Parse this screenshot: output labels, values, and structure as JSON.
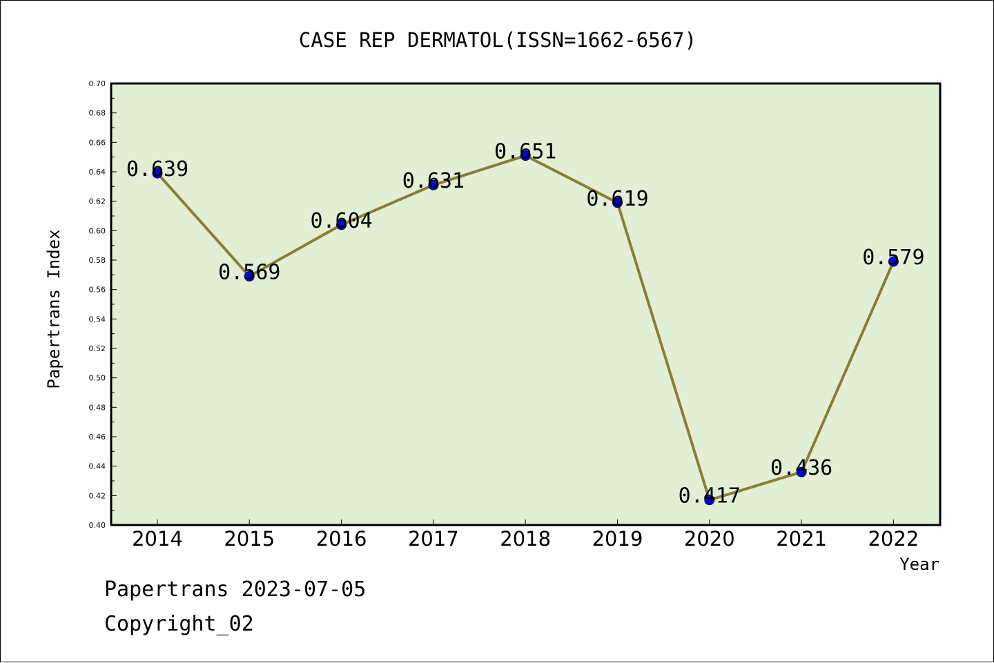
{
  "chart_data": {
    "type": "line",
    "title": "CASE REP DERMATOL(ISSN=1662-6567)",
    "xlabel": "Year",
    "ylabel": "Papertrans Index",
    "categories": [
      "2014",
      "2015",
      "2016",
      "2017",
      "2018",
      "2019",
      "2020",
      "2021",
      "2022"
    ],
    "values": [
      0.639,
      0.569,
      0.604,
      0.631,
      0.651,
      0.619,
      0.417,
      0.436,
      0.579
    ],
    "data_labels": [
      "0.639",
      "0.569",
      "0.604",
      "0.631",
      "0.651",
      "0.619",
      "0.417",
      "0.436",
      "0.579"
    ],
    "ylim": [
      0.4,
      0.7
    ],
    "yticks": [
      "0.40",
      "0.42",
      "0.44",
      "0.46",
      "0.48",
      "0.50",
      "0.52",
      "0.54",
      "0.56",
      "0.58",
      "0.60",
      "0.62",
      "0.64",
      "0.66",
      "0.68",
      "0.70"
    ],
    "grid": false,
    "colors": {
      "plot_background": "#e2efd4",
      "line": "#8b7d35",
      "marker": "#0000ff",
      "axis": "#000000"
    }
  },
  "footer": {
    "line1": "Papertrans 2023-07-05",
    "line2": "Copyright_02"
  }
}
